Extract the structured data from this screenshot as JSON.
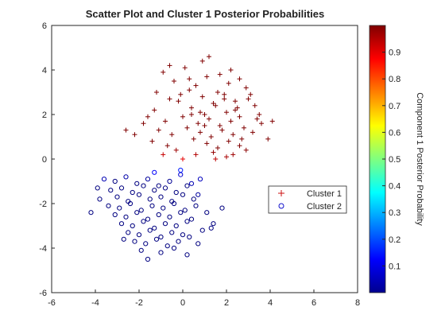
{
  "chart_data": {
    "type": "scatter",
    "title": "Scatter Plot and Cluster 1 Posterior Probabilities",
    "xlabel": "",
    "ylabel": "",
    "xlim": [
      -6,
      8
    ],
    "ylim": [
      -6,
      6
    ],
    "xticks": [
      -6,
      -4,
      -2,
      0,
      2,
      4,
      6,
      8
    ],
    "yticks": [
      -6,
      -4,
      -2,
      0,
      2,
      4,
      6
    ],
    "grid": false,
    "legend": {
      "position": "right-middle",
      "entries": [
        {
          "label": "Cluster 1",
          "marker": "plus"
        },
        {
          "label": "Cluster 2",
          "marker": "circle"
        }
      ]
    },
    "colorbar": {
      "label": "Component 1 Posterior Probability",
      "range": [
        0,
        1
      ],
      "ticks": [
        0.1,
        0.2,
        0.3,
        0.4,
        0.5,
        0.6,
        0.7,
        0.8,
        0.9
      ],
      "colormap": "jet"
    },
    "series": [
      {
        "name": "Cluster 1",
        "marker": "plus",
        "posterior": 1.0,
        "x": [
          -0.9,
          -0.4,
          0.1,
          0.6,
          1.1,
          1.6,
          2.1,
          2.6,
          3.1,
          -0.6,
          0.3,
          0.9,
          1.4,
          1.9,
          2.4,
          2.9,
          3.3,
          -1.3,
          -0.2,
          0.4,
          1.0,
          1.5,
          2.0,
          2.5,
          3.5,
          -1.6,
          -0.8,
          0.0,
          0.7,
          1.2,
          1.7,
          2.2,
          2.8,
          3.6,
          -1.1,
          -0.5,
          0.2,
          0.8,
          1.3,
          1.8,
          2.3,
          2.7,
          3.2,
          -2.2,
          -1.4,
          -0.7,
          0.5,
          1.1,
          1.6,
          2.1,
          2.6,
          3.9,
          -0.3,
          0.6,
          1.4,
          2.0,
          2.9,
          -1.8,
          -0.1,
          0.9,
          1.7,
          2.4,
          3.4,
          -0.9,
          0.3,
          1.2,
          2.2,
          3.0,
          -1.2,
          0.0,
          1.0,
          1.9,
          2.6,
          -0.6,
          0.4,
          1.5,
          2.3,
          -2.6,
          4.1,
          0.8
        ],
        "y": [
          3.9,
          3.5,
          4.1,
          3.3,
          3.7,
          3.0,
          3.4,
          3.6,
          2.9,
          2.7,
          3.1,
          2.8,
          2.5,
          2.9,
          2.6,
          3.2,
          2.4,
          2.2,
          2.6,
          2.3,
          2.0,
          2.4,
          2.1,
          2.3,
          2.0,
          1.9,
          1.7,
          1.9,
          1.6,
          1.8,
          1.5,
          1.7,
          1.4,
          1.6,
          1.3,
          1.1,
          1.4,
          1.2,
          1.0,
          1.3,
          1.1,
          0.9,
          1.2,
          1.1,
          0.8,
          0.6,
          0.9,
          0.7,
          0.5,
          0.8,
          0.6,
          0.9,
          0.4,
          0.2,
          0.3,
          0.1,
          0.4,
          1.6,
          2.9,
          4.4,
          3.8,
          2.2,
          1.8,
          0.2,
          3.6,
          4.6,
          4.0,
          2.7,
          3.0,
          0.0,
          1.5,
          2.7,
          1.9,
          4.2,
          2.0,
          0.0,
          0.2,
          1.3,
          1.7,
          2.1
        ],
        "posteriors": [
          1,
          1,
          1,
          1,
          1,
          1,
          1,
          1,
          1,
          1,
          1,
          1,
          1,
          1,
          1,
          1,
          1,
          1,
          1,
          1,
          1,
          1,
          1,
          1,
          1,
          1,
          1,
          1,
          1,
          1,
          1,
          1,
          1,
          1,
          1,
          1,
          1,
          1,
          1,
          1,
          1,
          1,
          1,
          1,
          1,
          1,
          1,
          1,
          1,
          1,
          1,
          1,
          0.97,
          0.95,
          0.98,
          0.96,
          0.99,
          1,
          1,
          1,
          1,
          1,
          1,
          0.93,
          1,
          1,
          1,
          1,
          1,
          0.9,
          1,
          1,
          1,
          1,
          1,
          0.94,
          0.97,
          1,
          1,
          1
        ]
      },
      {
        "name": "Cluster 2",
        "marker": "circle",
        "posterior": 0.0,
        "x": [
          -3.6,
          -3.1,
          -2.6,
          -2.1,
          -1.6,
          -1.1,
          -0.6,
          -0.1,
          0.4,
          -3.3,
          -2.8,
          -2.3,
          -1.8,
          -1.3,
          -0.8,
          -0.3,
          0.2,
          0.7,
          -3.8,
          -3.0,
          -2.5,
          -2.0,
          -1.5,
          -1.0,
          -0.5,
          0.0,
          0.5,
          -3.4,
          -2.9,
          -2.4,
          -1.9,
          -1.4,
          -0.9,
          -0.4,
          0.1,
          0.6,
          1.1,
          -3.1,
          -2.6,
          -2.1,
          -1.6,
          -1.1,
          -0.6,
          -0.1,
          0.4,
          -2.8,
          -2.3,
          -1.8,
          -1.3,
          -0.8,
          -0.3,
          0.2,
          0.9,
          -2.5,
          -2.0,
          -1.5,
          -1.0,
          -0.5,
          0.0,
          1.4,
          -2.2,
          -1.7,
          -1.2,
          -0.7,
          -0.2,
          0.3,
          -1.9,
          -1.0,
          -0.4,
          0.7,
          -4.2,
          1.8,
          -1.3,
          -0.1,
          -2.7,
          0.8,
          -1.6,
          0.2,
          -3.9,
          1.3
        ],
        "y": [
          -0.9,
          -1.0,
          -0.8,
          -1.1,
          -0.9,
          -1.2,
          -1.0,
          -0.7,
          -1.1,
          -1.4,
          -1.3,
          -1.5,
          -1.2,
          -1.4,
          -1.3,
          -1.5,
          -1.2,
          -1.6,
          -1.8,
          -1.7,
          -1.9,
          -1.6,
          -1.8,
          -1.7,
          -1.9,
          -1.6,
          -1.8,
          -2.1,
          -2.2,
          -2.0,
          -2.3,
          -2.1,
          -2.2,
          -2.0,
          -2.3,
          -2.1,
          -2.4,
          -2.5,
          -2.6,
          -2.4,
          -2.7,
          -2.5,
          -2.6,
          -2.4,
          -2.7,
          -2.9,
          -3.0,
          -2.8,
          -3.1,
          -2.9,
          -3.0,
          -2.8,
          -3.2,
          -3.3,
          -3.4,
          -3.2,
          -3.5,
          -3.3,
          -3.4,
          -2.9,
          -3.7,
          -3.8,
          -3.6,
          -3.9,
          -3.7,
          -3.5,
          -4.1,
          -4.2,
          -4.0,
          -3.8,
          -2.4,
          -2.2,
          -0.6,
          -0.5,
          -3.6,
          -0.9,
          -4.5,
          -4.3,
          -1.3,
          -3.1
        ],
        "posteriors": [
          0.05,
          0,
          0.04,
          0,
          0.03,
          0,
          0.02,
          0.08,
          0.05,
          0,
          0,
          0,
          0,
          0,
          0,
          0,
          0,
          0.03,
          0,
          0,
          0,
          0,
          0,
          0,
          0,
          0,
          0,
          0,
          0,
          0,
          0,
          0,
          0,
          0,
          0,
          0,
          0,
          0,
          0,
          0,
          0,
          0,
          0,
          0,
          0,
          0,
          0,
          0,
          0,
          0,
          0,
          0,
          0,
          0,
          0,
          0,
          0,
          0,
          0,
          0,
          0,
          0,
          0,
          0,
          0,
          0,
          0,
          0,
          0,
          0,
          0,
          0,
          0.12,
          0.15,
          0,
          0.06,
          0,
          0,
          0,
          0
        ]
      }
    ]
  }
}
